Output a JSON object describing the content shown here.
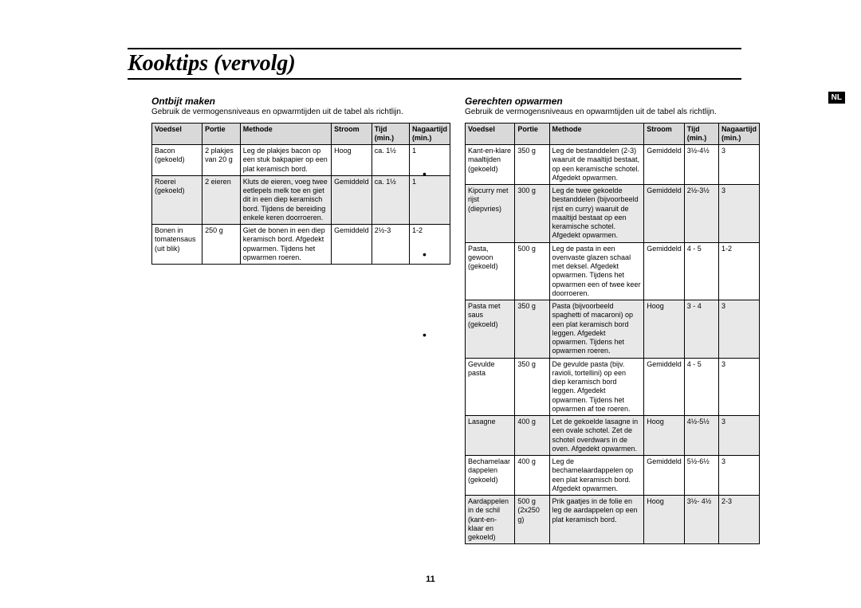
{
  "page": {
    "title": "Kooktips (vervolg)",
    "lang_badge": "NL",
    "page_number": "11"
  },
  "left": {
    "subhead": "Ontbijt maken",
    "intro": "Gebruik de vermogensniveaus en opwarmtijden uit de tabel als richtlijn.",
    "headers": {
      "c0": "Voedsel",
      "c1": "Portie",
      "c2": "Methode",
      "c3": "Stroom",
      "c4": "Tijd (min.)",
      "c5": "Nagaartijd (min.)"
    },
    "rows": [
      {
        "alt": false,
        "c0": "Bacon (gekoeld)",
        "c1": "2 plakjes van 20 g",
        "c2": "Leg de plakjes bacon op een stuk bakpapier op een plat keramisch bord.",
        "c3": "Hoog",
        "c4": "ca. 1½",
        "c5": "1"
      },
      {
        "alt": true,
        "c0": "Roerei (gekoeld)",
        "c1": "2 eieren",
        "c2": "Kluts de eieren, voeg twee eetlepels melk toe en giet dit in een diep keramisch bord. Tijdens de bereiding enkele keren doorroeren.",
        "c3": "Gemiddeld",
        "c4": "ca. 1½",
        "c5": "1"
      },
      {
        "alt": false,
        "c0": "Bonen in tomatensaus (uit blik)",
        "c1": "250 g",
        "c2": "Giet de bonen in een diep keramisch bord. Afgedekt opwarmen. Tijdens het opwarmen roeren.",
        "c3": "Gemiddeld",
        "c4": "2½-3",
        "c5": "1-2"
      }
    ]
  },
  "right": {
    "subhead": "Gerechten opwarmen",
    "intro": "Gebruik de vermogensniveaus en opwarmtijden uit de tabel als richtlijn.",
    "headers": {
      "c0": "Voedsel",
      "c1": "Portie",
      "c2": "Methode",
      "c3": "Stroom",
      "c4": "Tijd (min.)",
      "c5": "Nagaartijd (min.)"
    },
    "rows": [
      {
        "alt": false,
        "c0": "Kant-en-klare maaltijden (gekoeld)",
        "c1": "350 g",
        "c2": "Leg de bestanddelen (2-3) waaruit de maaltijd bestaat, op een keramische schotel. Afgedekt opwarmen.",
        "c3": "Gemiddeld",
        "c4": "3½-4½",
        "c5": "3"
      },
      {
        "alt": true,
        "c0": "Kipcurry met rijst (diepvries)",
        "c1": "300 g",
        "c2": "Leg de twee gekoelde bestanddelen (bijvoorbeeld rijst en curry) waaruit de maaltijd bestaat op een keramische schotel. Afgedekt opwarmen.",
        "c3": "Gemiddeld",
        "c4": "2½-3½",
        "c5": "3"
      },
      {
        "alt": false,
        "c0": "Pasta, gewoon (gekoeld)",
        "c1": "500 g",
        "c2": "Leg de pasta in een ovenvaste glazen schaal met deksel. Afgedekt opwarmen. Tijdens het opwarmen een of twee keer doorroeren.",
        "c3": "Gemiddeld",
        "c4": "4 - 5",
        "c5": "1-2"
      },
      {
        "alt": true,
        "c0": "Pasta met saus (gekoeld)",
        "c1": "350 g",
        "c2": "Pasta (bijvoorbeeld spaghetti of macaroni) op een plat keramisch bord leggen. Afgedekt opwarmen. Tijdens het opwarmen roeren.",
        "c3": "Hoog",
        "c4": "3 - 4",
        "c5": "3"
      },
      {
        "alt": false,
        "c0": "Gevulde pasta",
        "c1": "350 g",
        "c2": "De gevulde pasta (bijv. ravioli, tortellini) op een diep keramisch bord leggen. Afgedekt opwarmen. Tijdens het opwarmen af toe roeren.",
        "c3": "Gemiddeld",
        "c4": "4 - 5",
        "c5": "3"
      },
      {
        "alt": true,
        "c0": "Lasagne",
        "c1": "400 g",
        "c2": "Let de gekoelde lasagne in een ovale schotel. Zet de schotel overdwars in de oven. Afgedekt opwarmen.",
        "c3": "Hoog",
        "c4": "4½-5½",
        "c5": "3"
      },
      {
        "alt": false,
        "c0": "Bechamelaar dappelen (gekoeld)",
        "c1": "400 g",
        "c2": "Leg de bechamelaardappelen op een plat keramisch bord. Afgedekt opwarmen.",
        "c3": "Gemiddeld",
        "c4": "5½-6½",
        "c5": "3"
      },
      {
        "alt": true,
        "c0": "Aardappelen in de schil (kant-en-klaar en gekoeld)",
        "c1": "500 g (2x250 g)",
        "c2": "Prik gaatjes in de folie en leg de aardappelen op een plat keramisch bord.",
        "c3": "Hoog",
        "c4": "3½- 4½",
        "c5": "2-3"
      }
    ]
  },
  "table_style": {
    "header_bg": "#d9d9d9",
    "alt_bg": "#e8e8e8",
    "border_color": "#000000",
    "font_size": 9
  }
}
